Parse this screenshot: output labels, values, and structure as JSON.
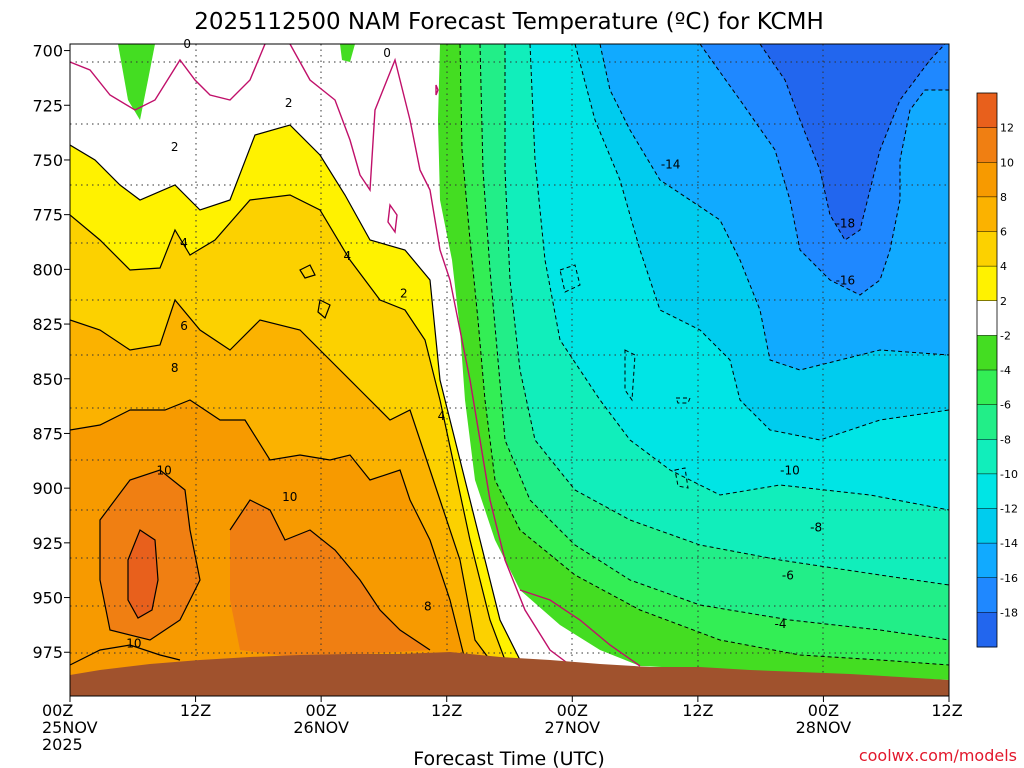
{
  "chart_data": {
    "type": "heatmap",
    "title": "2025112500 NAM Forecast Temperature (ºC) for KCMH",
    "xlabel": "Forecast Time (UTC)",
    "ylabel": "",
    "credit": "coolwx.com/models",
    "x_range_hours": [
      0,
      84
    ],
    "y_range_mb": [
      697,
      995
    ],
    "x_ticks": [
      {
        "hour": 0,
        "line1": "00Z",
        "line2": "25NOV",
        "line3": "2025"
      },
      {
        "hour": 12,
        "line1": "12Z",
        "line2": "",
        "line3": ""
      },
      {
        "hour": 24,
        "line1": "00Z",
        "line2": "26NOV",
        "line3": ""
      },
      {
        "hour": 36,
        "line1": "12Z",
        "line2": "",
        "line3": ""
      },
      {
        "hour": 48,
        "line1": "00Z",
        "line2": "27NOV",
        "line3": ""
      },
      {
        "hour": 60,
        "line1": "12Z",
        "line2": "",
        "line3": ""
      },
      {
        "hour": 72,
        "line1": "00Z",
        "line2": "28NOV",
        "line3": ""
      },
      {
        "hour": 84,
        "line1": "12Z",
        "line2": "",
        "line3": ""
      }
    ],
    "y_ticks": [
      700,
      725,
      750,
      775,
      800,
      825,
      850,
      875,
      900,
      925,
      950,
      975
    ],
    "colorbar": {
      "labels": [
        "12",
        "10",
        "8",
        "6",
        "4",
        "2",
        "-2",
        "-4",
        "-6",
        "-8",
        "-10",
        "-12",
        "-14",
        "-16",
        "-18"
      ],
      "colors": [
        "#e8601c",
        "#f07f12",
        "#f79a00",
        "#fbb200",
        "#fcd100",
        "#fff200",
        "#ffffff",
        "#44dd22",
        "#33ee55",
        "#22ee88",
        "#11eebb",
        "#00e5e5",
        "#00ccee",
        "#11aaff",
        "#1f88ff",
        "#2266ee"
      ]
    },
    "contour_labels": [
      {
        "text": "0",
        "hour": 11.2,
        "mb": 697
      },
      {
        "text": "0",
        "hour": 30.3,
        "mb": 701
      },
      {
        "text": "2",
        "hour": 20.9,
        "mb": 724
      },
      {
        "text": "2",
        "hour": 10.0,
        "mb": 744
      },
      {
        "text": "4",
        "hour": 10.9,
        "mb": 788
      },
      {
        "text": "4",
        "hour": 26.5,
        "mb": 794
      },
      {
        "text": "2",
        "hour": 31.9,
        "mb": 811
      },
      {
        "text": "6",
        "hour": 10.9,
        "mb": 826
      },
      {
        "text": "8",
        "hour": 10.0,
        "mb": 845
      },
      {
        "text": "4",
        "hour": 35.5,
        "mb": 867
      },
      {
        "text": "10",
        "hour": 9.0,
        "mb": 892
      },
      {
        "text": "10",
        "hour": 21.0,
        "mb": 904
      },
      {
        "text": "8",
        "hour": 34.2,
        "mb": 954
      },
      {
        "text": "10",
        "hour": 6.1,
        "mb": 971
      },
      {
        "text": "-14",
        "hour": 57.4,
        "mb": 752
      },
      {
        "text": "-18",
        "hour": 74.1,
        "mb": 779
      },
      {
        "text": "-16",
        "hour": 74.1,
        "mb": 805
      },
      {
        "text": "-10",
        "hour": 68.8,
        "mb": 892
      },
      {
        "text": "-8",
        "hour": 71.3,
        "mb": 918
      },
      {
        "text": "-6",
        "hour": 68.6,
        "mb": 940
      },
      {
        "text": "-4",
        "hour": 67.9,
        "mb": 962
      }
    ]
  }
}
